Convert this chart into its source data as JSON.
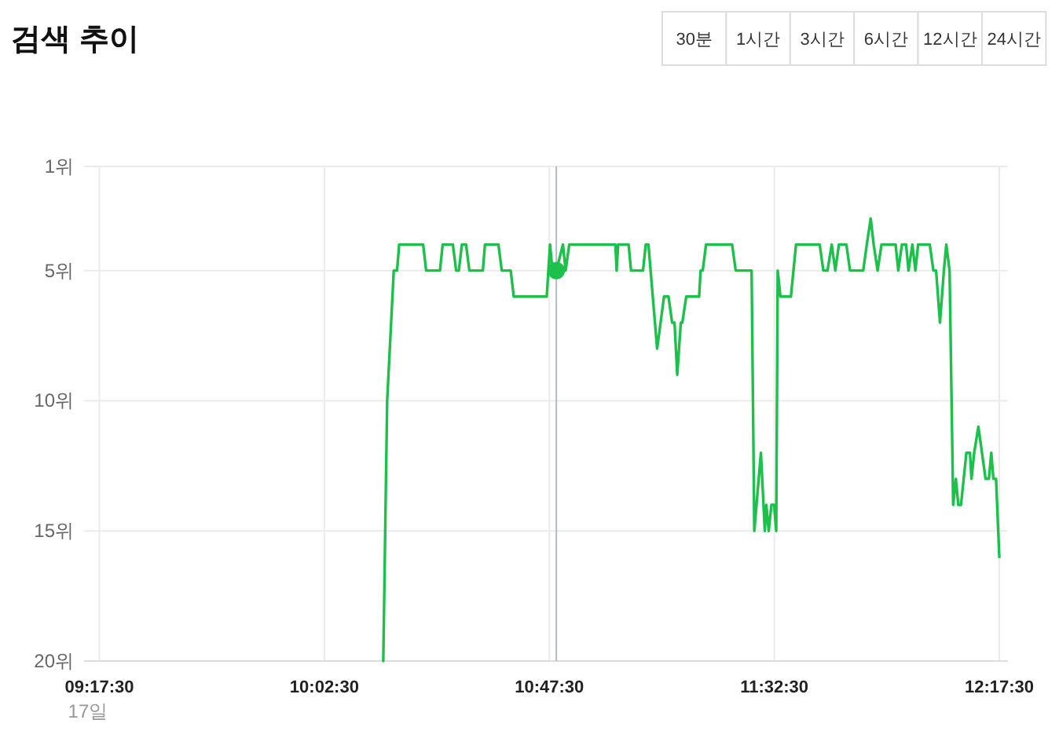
{
  "chart_data": {
    "type": "line",
    "title": "검색 추이",
    "annotations": [
      "17일",
      "30분",
      "1시간",
      "3시간",
      "6시간",
      "12시간",
      "24시간"
    ],
    "xlim": [
      9.24,
      12.32
    ],
    "xticks": [
      {
        "value": 9.2917,
        "label": "09:17:30"
      },
      {
        "value": 10.0417,
        "label": "10:02:30"
      },
      {
        "value": 10.7917,
        "label": "10:47:30"
      },
      {
        "value": 11.5417,
        "label": "11:32:30"
      },
      {
        "value": 12.2917,
        "label": "12:17:30"
      }
    ],
    "ylim": [
      20,
      1
    ],
    "yticks": [
      {
        "value": 1,
        "label": "1위"
      },
      {
        "value": 5,
        "label": "5위"
      },
      {
        "value": 10,
        "label": "10위"
      },
      {
        "value": 15,
        "label": "15위"
      },
      {
        "value": 20,
        "label": "20위"
      }
    ],
    "grid": true,
    "line_style": "solid",
    "ref_lines": [
      {
        "axis": "x",
        "value": 10.815,
        "color": "#b4b9c3"
      }
    ],
    "series": [
      {
        "color": "#1cc04a",
        "x": [
          10.238,
          10.251,
          10.273,
          10.284,
          10.291,
          10.371,
          10.381,
          10.427,
          10.436,
          10.47,
          10.481,
          10.49,
          10.5,
          10.514,
          10.525,
          10.57,
          10.577,
          10.622,
          10.633,
          10.663,
          10.673,
          10.783,
          10.794,
          10.802,
          10.815,
          10.837,
          10.846,
          10.858,
          11.012,
          11.016,
          11.021,
          11.056,
          11.064,
          11.104,
          11.113,
          11.122,
          11.151,
          11.174,
          11.189,
          11.201,
          11.209,
          11.218,
          11.23,
          11.235,
          11.248,
          11.291,
          11.296,
          11.303,
          11.314,
          11.401,
          11.413,
          11.466,
          11.475,
          11.497,
          11.51,
          11.515,
          11.523,
          11.532,
          11.541,
          11.548,
          11.553,
          11.562,
          11.597,
          11.614,
          11.693,
          11.705,
          11.719,
          11.733,
          11.745,
          11.757,
          11.782,
          11.794,
          11.838,
          11.85,
          11.863,
          11.873,
          11.886,
          11.899,
          11.946,
          11.955,
          11.967,
          11.981,
          11.989,
          12.002,
          12.012,
          12.021,
          12.06,
          12.072,
          12.081,
          12.094,
          12.107,
          12.115,
          12.126,
          12.138,
          12.147,
          12.155,
          12.164,
          12.182,
          12.194,
          12.199,
          12.208,
          12.222,
          12.234,
          12.246,
          12.257,
          12.265,
          12.272,
          12.281,
          12.2917
        ],
        "values": [
          20,
          10,
          5,
          5,
          4,
          4,
          5,
          5,
          4,
          4,
          5,
          5,
          4,
          4,
          5,
          5,
          4,
          4,
          5,
          5,
          6,
          6,
          4,
          5,
          5,
          4,
          5,
          4,
          4,
          5,
          4,
          4,
          5,
          5,
          4,
          4,
          8,
          6,
          6,
          7,
          7,
          9,
          7,
          7,
          6,
          6,
          5,
          5,
          4,
          4,
          5,
          5,
          15,
          12,
          15,
          14,
          15,
          14,
          14,
          15,
          5,
          6,
          6,
          4,
          4,
          5,
          5,
          4,
          5,
          4,
          4,
          5,
          5,
          4,
          3,
          4,
          5,
          4,
          4,
          5,
          4,
          4,
          5,
          4,
          5,
          4,
          4,
          5,
          5,
          7,
          5,
          4,
          5,
          14,
          13,
          14,
          14,
          12,
          12,
          13,
          12,
          11,
          12,
          13,
          13,
          12,
          13,
          13,
          16
        ]
      },
      {
        "type": "scatter",
        "color": "#1cc04a",
        "marker": "circle",
        "x": [
          10.815
        ],
        "values": [
          5
        ]
      }
    ]
  }
}
